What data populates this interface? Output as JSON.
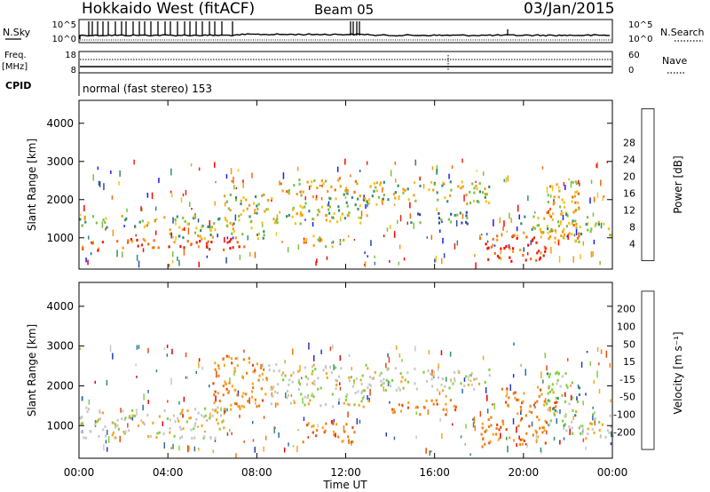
{
  "header": {
    "station": "Hokkaido West (fitACF)",
    "beam": "Beam 05",
    "date": "03/Jan/2015"
  },
  "strip": {
    "nsky_label": "N.Sky",
    "nsky_ticks": [
      "10^5",
      "10^0"
    ],
    "nsearch_label": "N.Search",
    "nsearch_ticks": [
      "10^5",
      "10^0"
    ],
    "freq_label_1": "Freq.",
    "freq_label_2": "[MHz]",
    "freq_ticks": [
      "18",
      "8"
    ],
    "nave_label": "Nave",
    "nave_ticks": [
      "60",
      "0"
    ],
    "cpid_label": "CPID",
    "cpid_value": "normal (fast stereo) 153"
  },
  "chart_data": [
    {
      "type": "heatmap",
      "name": "power",
      "ylabel": "Slant Range [km]",
      "yticks": [
        "1000",
        "2000",
        "3000",
        "4000"
      ],
      "ylim": [
        180,
        4600
      ],
      "colorbar": {
        "label": "Power [dB]",
        "ticks": [
          "4",
          "8",
          "12",
          "16",
          "20",
          "24",
          "28"
        ],
        "colors": [
          "#1a1aff",
          "#2b4ea8",
          "#2f8f6e",
          "#7cc142",
          "#f2c318",
          "#f59b10",
          "#f26a0c",
          "#e62314",
          "#ff0000"
        ]
      },
      "bands": [
        {
          "t0": 0.0,
          "t1": 7.0,
          "r0": 1300,
          "r1": 1600,
          "level": "mid"
        },
        {
          "t0": 0.0,
          "t1": 7.5,
          "r0": 700,
          "r1": 1000,
          "level": "high"
        },
        {
          "t0": 4.0,
          "t1": 8.5,
          "r0": 1000,
          "r1": 1300,
          "level": "mid"
        },
        {
          "t0": 6.5,
          "t1": 13.0,
          "r0": 1400,
          "r1": 2200,
          "level": "mid"
        },
        {
          "t0": 9.0,
          "t1": 12.5,
          "r0": 2200,
          "r1": 2600,
          "level": "upper"
        },
        {
          "t0": 10.0,
          "t1": 12.0,
          "r0": 800,
          "r1": 1100,
          "level": "upper"
        },
        {
          "t0": 13.0,
          "t1": 18.5,
          "r0": 1900,
          "r1": 2500,
          "level": "mid"
        },
        {
          "t0": 14.5,
          "t1": 17.5,
          "r0": 1400,
          "r1": 1700,
          "level": "low"
        },
        {
          "t0": 18.0,
          "t1": 21.0,
          "r0": 400,
          "r1": 1100,
          "level": "high"
        },
        {
          "t0": 19.5,
          "t1": 22.0,
          "r0": 1000,
          "r1": 1700,
          "level": "mid"
        },
        {
          "t0": 21.0,
          "t1": 22.5,
          "r0": 900,
          "r1": 2500,
          "level": "upper"
        },
        {
          "t0": 22.0,
          "t1": 24.0,
          "r0": 1100,
          "r1": 1600,
          "level": "mid"
        }
      ]
    },
    {
      "type": "heatmap",
      "name": "velocity",
      "ylabel": "Slant Range [km]",
      "yticks": [
        "1000",
        "2000",
        "3000",
        "4000"
      ],
      "ylim": [
        180,
        4600
      ],
      "colorbar": {
        "label": "Velocity [m s⁻¹]",
        "ticks": [
          "200",
          "100",
          "50",
          "15",
          "-15",
          "-50",
          "-100",
          "-200"
        ],
        "colors": [
          "#2438b8",
          "#2a6ea8",
          "#2f8f6e",
          "#7ed23c",
          "#c8c8c8",
          "#f5a623",
          "#f27d10",
          "#e84a10",
          "#e60000"
        ]
      },
      "bands": [
        {
          "t0": 0.0,
          "t1": 6.5,
          "r0": 700,
          "r1": 1500,
          "level": "gray"
        },
        {
          "t0": 6.0,
          "t1": 8.5,
          "r0": 1400,
          "r1": 2800,
          "level": "orange"
        },
        {
          "t0": 8.5,
          "t1": 13.0,
          "r0": 1500,
          "r1": 2600,
          "level": "gray"
        },
        {
          "t0": 10.0,
          "t1": 12.5,
          "r0": 600,
          "r1": 1100,
          "level": "orange"
        },
        {
          "t0": 13.0,
          "t1": 18.5,
          "r0": 1900,
          "r1": 2500,
          "level": "gray"
        },
        {
          "t0": 14.0,
          "t1": 17.0,
          "r0": 1300,
          "r1": 1700,
          "level": "orange"
        },
        {
          "t0": 18.0,
          "t1": 21.0,
          "r0": 500,
          "r1": 1300,
          "level": "orange"
        },
        {
          "t0": 19.0,
          "t1": 21.5,
          "r0": 1300,
          "r1": 2000,
          "level": "orange"
        },
        {
          "t0": 21.0,
          "t1": 22.5,
          "r0": 900,
          "r1": 2400,
          "level": "green"
        },
        {
          "t0": 22.0,
          "t1": 24.0,
          "r0": 700,
          "r1": 1400,
          "level": "gray"
        }
      ]
    }
  ],
  "xaxis": {
    "label": "Time UT",
    "ticks": [
      "00:00",
      "04:00",
      "08:00",
      "12:00",
      "16:00",
      "20:00",
      "00:00"
    ],
    "xlim": [
      0,
      24
    ]
  }
}
